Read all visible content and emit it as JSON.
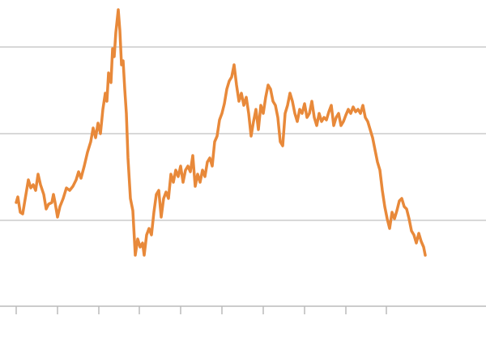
{
  "chart_data": {
    "type": "line",
    "xlim": [
      -20,
      580
    ],
    "ylim": [
      0,
      378
    ],
    "xticks": [
      0,
      51,
      102,
      152,
      203,
      254,
      305,
      356,
      407,
      457
    ],
    "yticks": [
      106,
      213,
      320
    ],
    "grid": true,
    "series": [
      {
        "color": "#e8893a",
        "x": [
          0,
          2,
          5,
          8,
          12,
          15,
          18,
          21,
          24,
          27,
          30,
          34,
          37,
          40,
          44,
          46,
          48,
          51,
          54,
          58,
          62,
          66,
          70,
          74,
          77,
          80,
          84,
          88,
          92,
          95,
          98,
          101,
          104,
          107,
          110,
          112,
          114,
          117,
          119,
          121,
          123,
          126,
          128,
          130,
          132,
          134,
          136,
          138,
          141,
          144,
          147,
          150,
          153,
          156,
          158,
          161,
          164,
          167,
          170,
          173,
          176,
          179,
          182,
          185,
          188,
          191,
          194,
          197,
          200,
          203,
          206,
          209,
          212,
          215,
          218,
          221,
          224,
          227,
          230,
          233,
          236,
          239,
          242,
          245,
          248,
          251,
          254,
          257,
          260,
          263,
          266,
          269,
          272,
          275,
          278,
          281,
          284,
          287,
          290,
          293,
          296,
          299,
          302,
          305,
          308,
          311,
          314,
          317,
          320,
          323,
          326,
          329,
          332,
          335,
          338,
          341,
          344,
          347,
          350,
          353,
          356,
          359,
          362,
          365,
          368,
          371,
          374,
          377,
          380,
          383,
          386,
          389,
          392,
          395,
          398,
          401,
          404,
          407,
          410,
          413,
          416,
          419,
          422,
          425,
          428,
          431,
          434,
          437,
          440,
          443,
          446,
          449,
          452,
          455,
          458,
          461,
          464,
          467,
          470,
          473,
          476,
          479,
          482,
          485,
          488,
          491,
          494,
          497,
          500,
          503,
          505
        ],
        "values": [
          128,
          135,
          116,
          114,
          138,
          156,
          146,
          150,
          143,
          163,
          150,
          138,
          120,
          126,
          128,
          138,
          128,
          110,
          123,
          133,
          146,
          143,
          148,
          156,
          166,
          158,
          173,
          190,
          203,
          220,
          208,
          226,
          213,
          243,
          263,
          253,
          288,
          276,
          318,
          308,
          338,
          366,
          340,
          298,
          303,
          268,
          238,
          183,
          133,
          118,
          63,
          83,
          73,
          78,
          63,
          88,
          96,
          88,
          116,
          138,
          143,
          110,
          133,
          141,
          133,
          163,
          153,
          168,
          160,
          173,
          153,
          168,
          173,
          166,
          186,
          148,
          163,
          153,
          168,
          160,
          178,
          183,
          173,
          203,
          210,
          230,
          238,
          250,
          268,
          278,
          283,
          298,
          273,
          253,
          263,
          248,
          258,
          238,
          210,
          228,
          243,
          218,
          248,
          238,
          258,
          273,
          268,
          253,
          248,
          233,
          203,
          198,
          238,
          248,
          263,
          253,
          238,
          228,
          243,
          238,
          250,
          233,
          238,
          253,
          233,
          223,
          238,
          228,
          233,
          230,
          240,
          248,
          223,
          233,
          238,
          223,
          228,
          236,
          243,
          238,
          246,
          240,
          243,
          238,
          248,
          233,
          228,
          218,
          208,
          193,
          178,
          168,
          143,
          123,
          108,
          96,
          116,
          108,
          118,
          130,
          133,
          123,
          120,
          108,
          93,
          88,
          78,
          90,
          80,
          73,
          63
        ]
      }
    ]
  }
}
